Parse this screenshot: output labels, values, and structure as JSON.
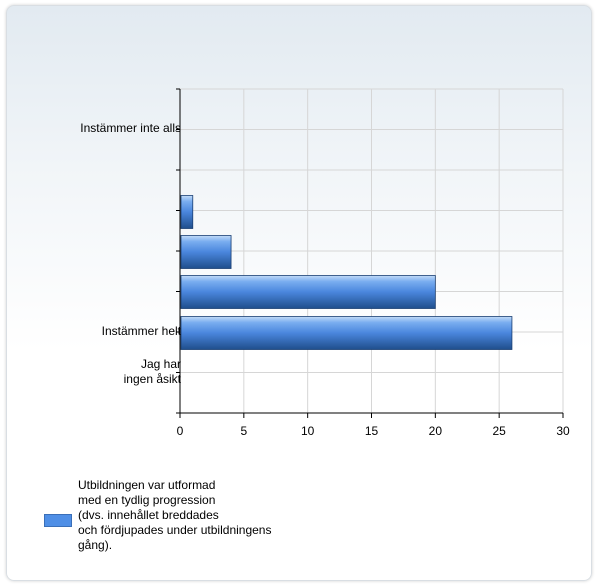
{
  "chart_data": {
    "type": "bar",
    "orientation": "horizontal",
    "categories": [
      "Instämmer inte alls",
      "",
      "",
      "",
      "Instämmer helt",
      "Jag har\ningen åsikt"
    ],
    "series": [
      {
        "name": "Utbildningen var utformad\nmed en tydlig progression\n(dvs. innehållet breddades\noch fördjupades under utbildningens\ngång).",
        "values": [
          0,
          1,
          4,
          20,
          26,
          0
        ]
      }
    ],
    "xlim": [
      0,
      30
    ],
    "ticks": [
      "0",
      "5",
      "10",
      "15",
      "20",
      "25",
      "30"
    ],
    "grid": true,
    "legend_position": "bottom",
    "colors": {
      "bar_light": "#9cc4f5",
      "bar_mid": "#4f8fe6",
      "bar_dark": "#1f4e8c",
      "grid": "#d6d6d6",
      "axis": "#000000"
    }
  }
}
